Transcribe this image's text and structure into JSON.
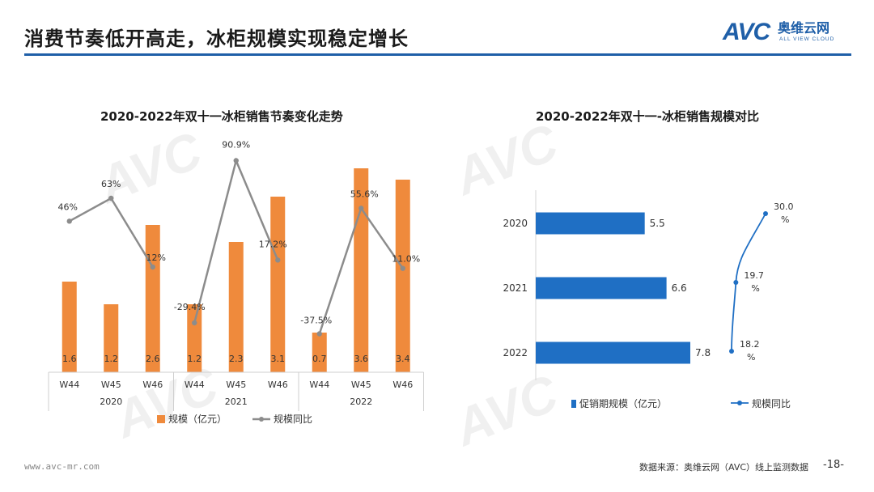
{
  "page": {
    "title": "消费节奏低开高走，冰柜规模实现稳定增长",
    "logo_mark": "AVC",
    "logo_cn": "奥维云网",
    "logo_en": "ALL VIEW CLOUD",
    "footer_url": "www.avc-mr.com",
    "footer_source": "数据来源：奥维云网（AVC）线上监测数据",
    "page_number": "-18-",
    "accent_color": "#1f5fa8"
  },
  "chart_data": [
    {
      "type": "bar",
      "title": "2020-2022年双十一冰柜销售节奏变化走势",
      "categories": [
        "W44",
        "W45",
        "W46",
        "W44",
        "W45",
        "W46",
        "W44",
        "W45",
        "W46"
      ],
      "groups": [
        "2020",
        "2021",
        "2022"
      ],
      "bar_color": "#ef8a3c",
      "line_color": "#8c8c8c",
      "series": [
        {
          "name": "规模（亿元）",
          "type": "bar",
          "values": [
            1.6,
            1.2,
            2.6,
            1.2,
            2.3,
            3.1,
            0.7,
            3.6,
            3.4
          ],
          "labels": [
            "1.6",
            "1.2",
            "2.6",
            "1.2",
            "2.3",
            "3.1",
            "0.7",
            "3.6",
            "3.4"
          ]
        },
        {
          "name": "规模同比",
          "type": "line",
          "values": [
            46,
            63,
            12,
            -29.4,
            90.9,
            17.2,
            -37.5,
            55.6,
            11.0
          ],
          "labels": [
            "46%",
            "63%",
            "12%",
            "-29.4%",
            "90.9%",
            "17.2%",
            "-37.5%",
            "55.6%",
            "11.0%"
          ]
        }
      ],
      "bar_ylim": [
        0,
        4
      ],
      "line_ylim": [
        -60,
        120
      ],
      "legend": "bottom"
    },
    {
      "type": "bar",
      "orientation": "horizontal",
      "title": "2020-2022年双十一-冰柜销售规模对比",
      "categories": [
        "2020",
        "2021",
        "2022"
      ],
      "bar_color": "#1f6fc4",
      "line_color": "#1f6fc4",
      "series": [
        {
          "name": "促销期规模（亿元）",
          "type": "bar",
          "values": [
            5.5,
            6.6,
            7.8
          ],
          "labels": [
            "5.5",
            "6.6",
            "7.8"
          ]
        },
        {
          "name": "规模同比",
          "type": "line",
          "values": [
            30.0,
            19.7,
            18.2
          ],
          "labels": [
            "30.0",
            "19.7",
            "18.2"
          ],
          "unit": "%"
        }
      ],
      "bar_xlim": [
        0,
        8.5
      ],
      "line_xlim": [
        14,
        34
      ],
      "legend": "bottom"
    }
  ]
}
